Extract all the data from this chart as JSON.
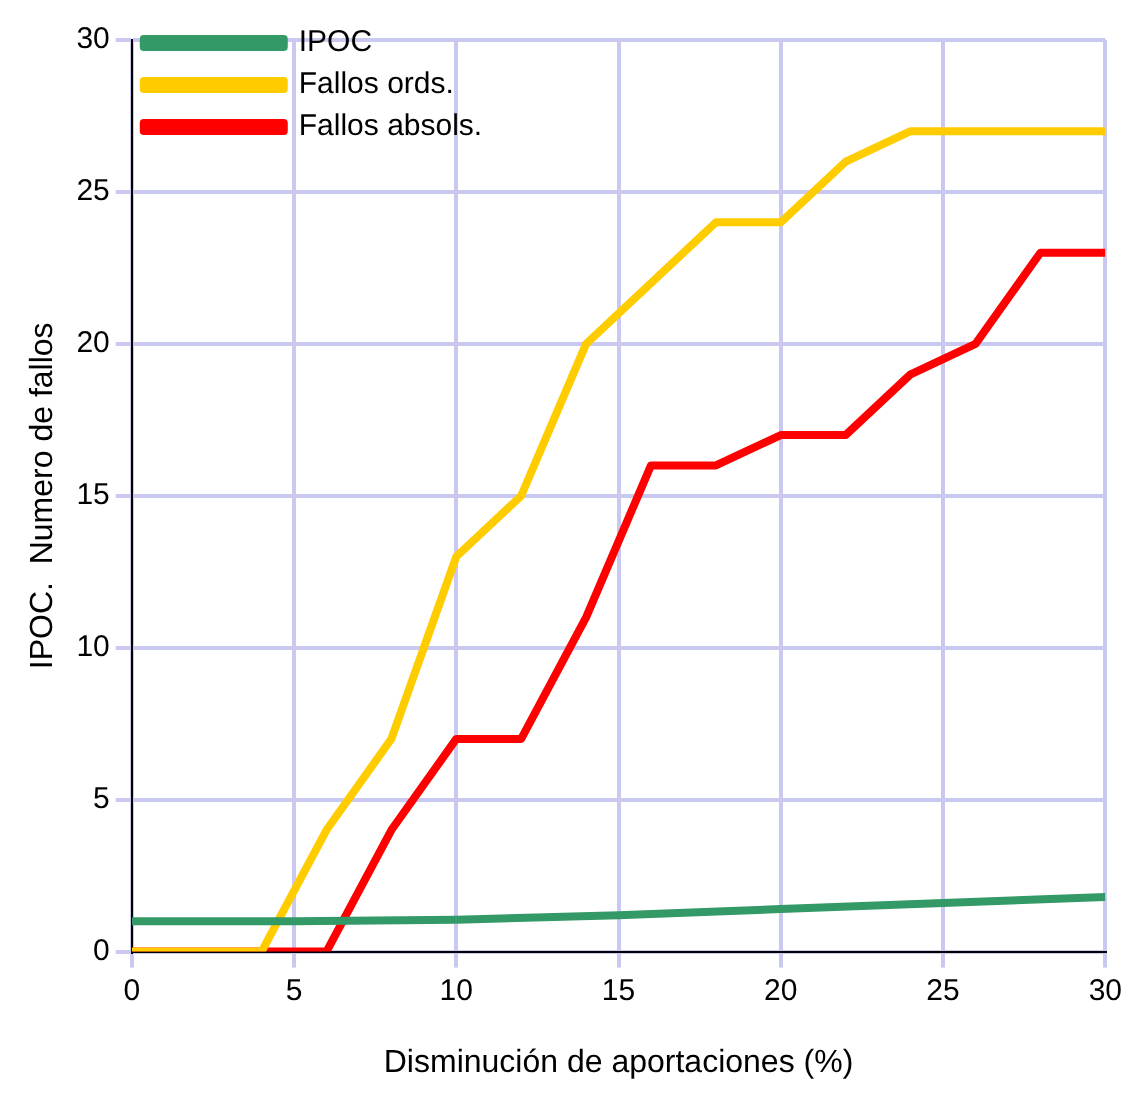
{
  "chart_data": {
    "type": "line",
    "xlabel": "Disminución de aportaciones (%)",
    "ylabel": "IPOC.  Numero de fallos",
    "xlim": [
      0,
      30
    ],
    "xticks": [
      0,
      5,
      10,
      15,
      20,
      25,
      30
    ],
    "ylim": [
      0,
      30
    ],
    "yticks": [
      0,
      5,
      10,
      15,
      20,
      25,
      30
    ],
    "grid": true,
    "legend": "top left",
    "marker": "none",
    "line_style": "solid",
    "series": [
      {
        "name": "IPOC",
        "color": "#339966",
        "x": [
          0,
          5,
          10,
          15,
          20,
          25,
          30
        ],
        "values": [
          1,
          1,
          1.05,
          1.2,
          1.4,
          1.6,
          1.8
        ]
      },
      {
        "name": "Fallos ords.",
        "color": "#ffcc00",
        "x": [
          0,
          4,
          6,
          8,
          10,
          12,
          14,
          16,
          18,
          20,
          22,
          24,
          26,
          28,
          30
        ],
        "values": [
          0,
          0,
          4,
          7,
          13,
          15,
          20,
          22,
          24,
          24,
          26,
          27,
          27,
          27,
          27
        ]
      },
      {
        "name": "Fallos absols.",
        "color": "#ff0000",
        "x": [
          0,
          6,
          8,
          10,
          12,
          14,
          16,
          18,
          20,
          22,
          24,
          26,
          28,
          30
        ],
        "values": [
          0,
          0,
          4,
          7,
          7,
          11,
          16,
          16,
          17,
          17,
          19,
          20,
          23,
          23
        ]
      }
    ]
  }
}
